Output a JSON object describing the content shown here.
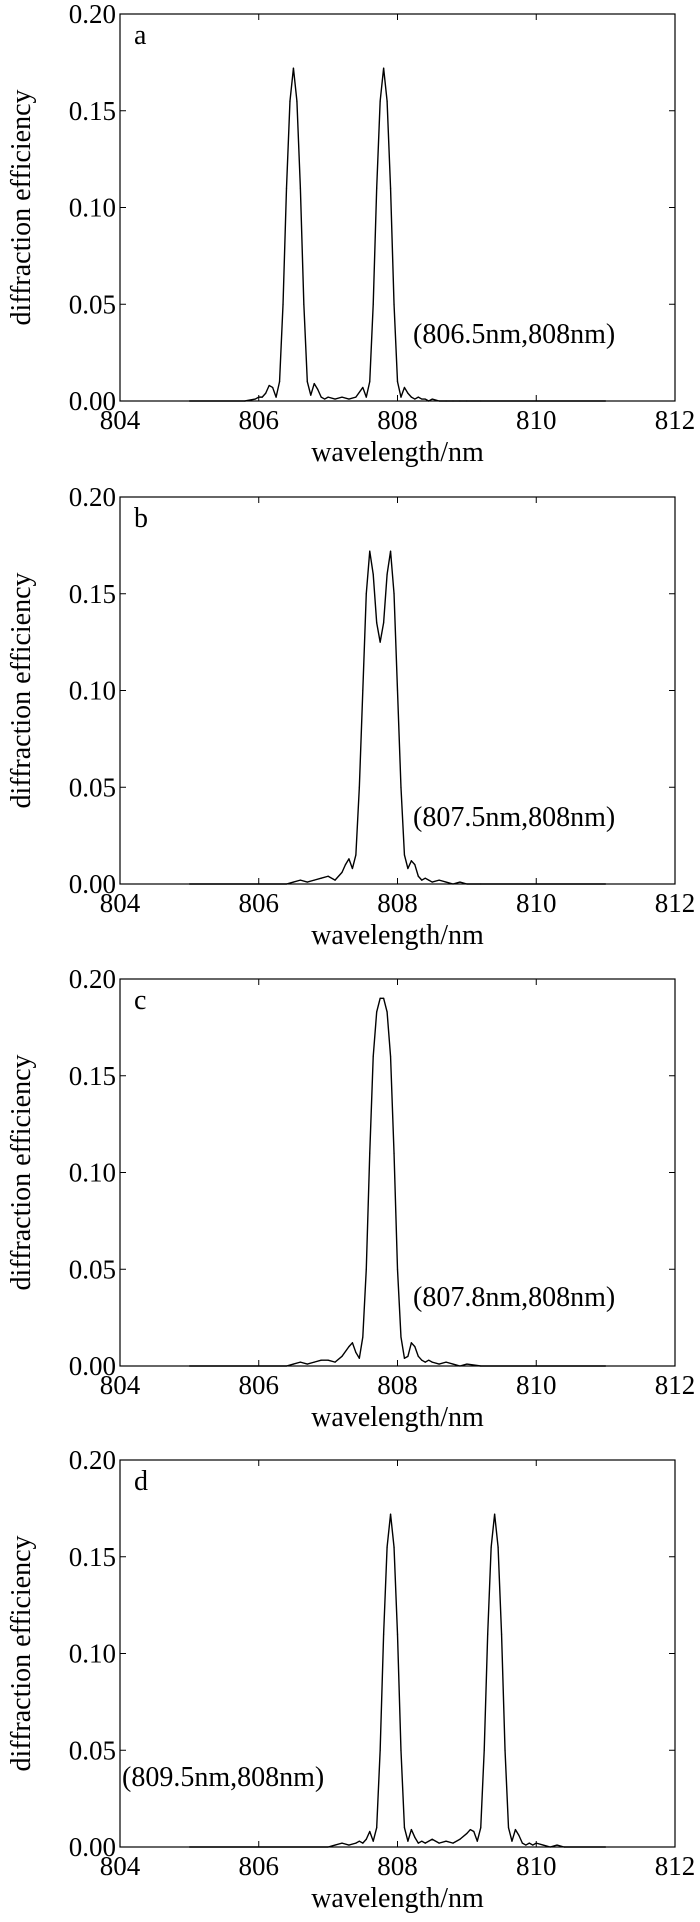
{
  "chart_data": [
    {
      "type": "line",
      "panel_label": "a",
      "annotation": "(806.5nm,808nm)",
      "xlabel": "wavelength/nm",
      "ylabel": "diffraction efficiency",
      "xlim": [
        804,
        812
      ],
      "ylim": [
        0,
        0.2
      ],
      "xticks": [
        804,
        806,
        808,
        810,
        812
      ],
      "yticks": [
        "0.00",
        "0.05",
        "0.10",
        "0.15",
        "0.20"
      ],
      "grid": false,
      "series": [
        {
          "x": [
            805.0,
            805.8,
            805.95,
            806.0,
            806.05,
            806.1,
            806.15,
            806.2,
            806.25,
            806.3,
            806.35,
            806.4,
            806.45,
            806.5,
            806.55,
            806.6,
            806.65,
            806.7,
            806.75,
            806.8,
            806.85,
            806.9,
            806.95,
            807.0,
            807.1,
            807.2,
            807.3,
            807.4,
            807.5,
            807.55,
            807.6,
            807.65,
            807.7,
            807.75,
            807.8,
            807.85,
            807.9,
            807.95,
            808.0,
            808.05,
            808.1,
            808.15,
            808.2,
            808.25,
            808.3,
            808.35,
            808.4,
            808.45,
            808.5,
            808.6,
            808.7,
            808.8,
            808.9,
            809.0,
            809.2,
            811.0
          ],
          "y": [
            0.0,
            0.0,
            0.001,
            0.002,
            0.002,
            0.004,
            0.008,
            0.007,
            0.002,
            0.01,
            0.05,
            0.11,
            0.155,
            0.172,
            0.155,
            0.11,
            0.05,
            0.01,
            0.003,
            0.009,
            0.006,
            0.002,
            0.001,
            0.002,
            0.001,
            0.002,
            0.001,
            0.002,
            0.007,
            0.002,
            0.01,
            0.05,
            0.11,
            0.155,
            0.172,
            0.155,
            0.11,
            0.05,
            0.01,
            0.002,
            0.007,
            0.004,
            0.002,
            0.001,
            0.002,
            0.001,
            0.001,
            0.0,
            0.001,
            0.0,
            0.0,
            0.0,
            0.0,
            0.0,
            0.0,
            0.0
          ]
        }
      ]
    },
    {
      "type": "line",
      "panel_label": "b",
      "annotation": "(807.5nm,808nm)",
      "xlabel": "wavelength/nm",
      "ylabel": "diffraction efficiency",
      "xlim": [
        804,
        812
      ],
      "ylim": [
        0,
        0.2
      ],
      "xticks": [
        804,
        806,
        808,
        810,
        812
      ],
      "yticks": [
        "0.00",
        "0.05",
        "0.10",
        "0.15",
        "0.20"
      ],
      "grid": false,
      "series": [
        {
          "x": [
            805.0,
            806.4,
            806.5,
            806.6,
            806.7,
            806.8,
            806.9,
            807.0,
            807.1,
            807.2,
            807.25,
            807.3,
            807.35,
            807.4,
            807.45,
            807.5,
            807.55,
            807.6,
            807.65,
            807.7,
            807.75,
            807.8,
            807.85,
            807.9,
            807.95,
            808.0,
            808.05,
            808.1,
            808.15,
            808.2,
            808.25,
            808.3,
            808.35,
            808.4,
            808.45,
            808.5,
            808.6,
            808.7,
            808.8,
            808.9,
            809.0,
            809.2,
            811.0
          ],
          "y": [
            0.0,
            0.0,
            0.001,
            0.002,
            0.001,
            0.002,
            0.003,
            0.004,
            0.002,
            0.006,
            0.01,
            0.013,
            0.008,
            0.015,
            0.05,
            0.1,
            0.15,
            0.172,
            0.16,
            0.135,
            0.125,
            0.135,
            0.16,
            0.172,
            0.15,
            0.1,
            0.05,
            0.015,
            0.008,
            0.012,
            0.01,
            0.004,
            0.002,
            0.003,
            0.002,
            0.001,
            0.002,
            0.001,
            0.0,
            0.001,
            0.0,
            0.0,
            0.0
          ]
        }
      ]
    },
    {
      "type": "line",
      "panel_label": "c",
      "annotation": "(807.8nm,808nm)",
      "xlabel": "wavelength/nm",
      "ylabel": "diffraction efficiency",
      "xlim": [
        804,
        812
      ],
      "ylim": [
        0,
        0.2
      ],
      "xticks": [
        804,
        806,
        808,
        810,
        812
      ],
      "yticks": [
        "0.00",
        "0.05",
        "0.10",
        "0.15",
        "0.20"
      ],
      "grid": false,
      "series": [
        {
          "x": [
            805.0,
            806.4,
            806.5,
            806.6,
            806.7,
            806.8,
            806.9,
            807.0,
            807.1,
            807.2,
            807.3,
            807.35,
            807.4,
            807.45,
            807.5,
            807.55,
            807.6,
            807.65,
            807.7,
            807.75,
            807.8,
            807.85,
            807.9,
            807.95,
            808.0,
            808.05,
            808.1,
            808.15,
            808.2,
            808.25,
            808.3,
            808.35,
            808.4,
            808.45,
            808.5,
            808.6,
            808.7,
            808.8,
            808.9,
            809.0,
            809.2,
            811.0
          ],
          "y": [
            0.0,
            0.0,
            0.001,
            0.002,
            0.001,
            0.002,
            0.003,
            0.003,
            0.002,
            0.005,
            0.01,
            0.012,
            0.007,
            0.004,
            0.015,
            0.05,
            0.11,
            0.16,
            0.183,
            0.19,
            0.19,
            0.183,
            0.16,
            0.11,
            0.05,
            0.015,
            0.004,
            0.005,
            0.012,
            0.01,
            0.005,
            0.003,
            0.002,
            0.003,
            0.002,
            0.001,
            0.002,
            0.001,
            0.0,
            0.001,
            0.0,
            0.0
          ]
        }
      ]
    },
    {
      "type": "line",
      "panel_label": "d",
      "annotation": "(809.5nm,808nm)",
      "xlabel": "wavelength/nm",
      "ylabel": "diffraction efficiency",
      "xlim": [
        804,
        812
      ],
      "ylim": [
        0,
        0.2
      ],
      "xticks": [
        804,
        806,
        808,
        810,
        812
      ],
      "yticks": [
        "0.00",
        "0.05",
        "0.10",
        "0.15",
        "0.20"
      ],
      "grid": false,
      "series": [
        {
          "x": [
            805.0,
            807.0,
            807.1,
            807.2,
            807.3,
            807.4,
            807.45,
            807.5,
            807.55,
            807.6,
            807.65,
            807.7,
            807.75,
            807.8,
            807.85,
            807.9,
            807.95,
            808.0,
            808.05,
            808.1,
            808.15,
            808.2,
            808.25,
            808.3,
            808.35,
            808.4,
            808.5,
            808.6,
            808.7,
            808.8,
            808.9,
            809.0,
            809.05,
            809.1,
            809.15,
            809.2,
            809.25,
            809.3,
            809.35,
            809.4,
            809.45,
            809.5,
            809.55,
            809.6,
            809.65,
            809.7,
            809.75,
            809.8,
            809.85,
            809.9,
            809.95,
            810.0,
            810.1,
            810.2,
            810.3,
            810.4,
            811.0
          ],
          "y": [
            0.0,
            0.0,
            0.001,
            0.002,
            0.001,
            0.002,
            0.003,
            0.002,
            0.004,
            0.008,
            0.003,
            0.01,
            0.05,
            0.11,
            0.155,
            0.172,
            0.155,
            0.11,
            0.05,
            0.01,
            0.003,
            0.009,
            0.005,
            0.002,
            0.003,
            0.002,
            0.004,
            0.002,
            0.003,
            0.002,
            0.004,
            0.007,
            0.009,
            0.008,
            0.003,
            0.01,
            0.05,
            0.11,
            0.155,
            0.172,
            0.155,
            0.11,
            0.05,
            0.01,
            0.003,
            0.009,
            0.006,
            0.002,
            0.001,
            0.002,
            0.001,
            0.002,
            0.001,
            0.0,
            0.001,
            0.0,
            0.0
          ]
        }
      ]
    }
  ]
}
